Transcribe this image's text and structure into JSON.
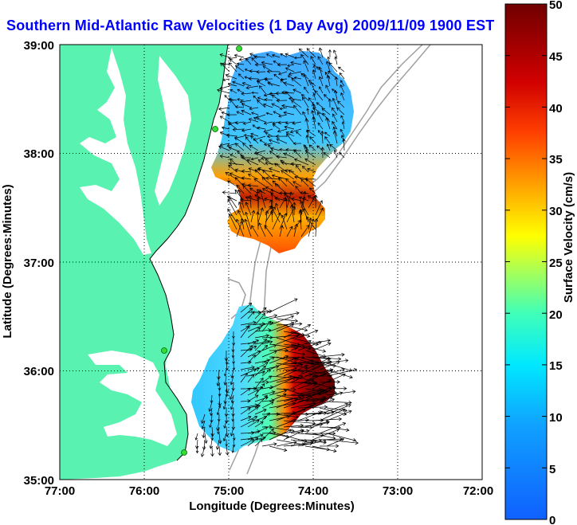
{
  "title": "Southern Mid-Atlantic Raw Velocities (1 Day Avg) 2009/11/09 1900 EST",
  "map": {
    "xlabel": "Longitude (Degrees:Minutes)",
    "ylabel": "Latitude (Degrees:Minutes)",
    "x_ticks": [
      "77:00",
      "76:00",
      "75:00",
      "74:00",
      "73:00",
      "72:00"
    ],
    "y_ticks": [
      "39:00",
      "38:00",
      "37:00",
      "36:00",
      "35:00"
    ],
    "lon_range": [
      -77,
      -72
    ],
    "lat_range": [
      35,
      39
    ],
    "grid": "dotted",
    "land_color": "#5af2b0",
    "water_color": "#ffffff",
    "bathymetry_color": "#a0a0a0",
    "station_color": "#33dd33"
  },
  "colorbar": {
    "label": "Surface Velocity (cm/s)",
    "ticks": [
      "50",
      "45",
      "40",
      "35",
      "30",
      "25",
      "20",
      "15",
      "10",
      "5",
      "0"
    ],
    "range": [
      0,
      50
    ],
    "colors": [
      "#1060ff",
      "#00d8ff",
      "#48ffb0",
      "#ffff00",
      "#ff9000",
      "#ff2000",
      "#b00000",
      "#780000"
    ]
  }
}
